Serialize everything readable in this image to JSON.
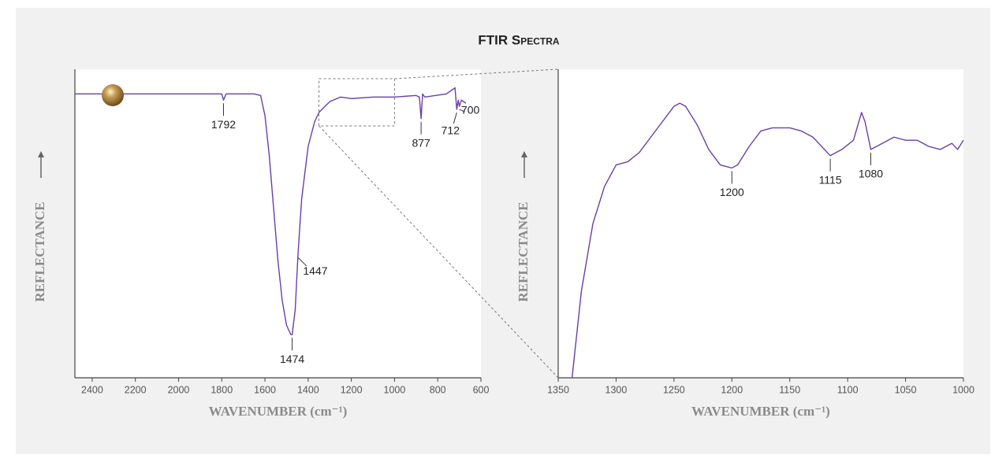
{
  "title": "FTIR Spectra",
  "chart_data": [
    {
      "type": "line",
      "xlabel": "WAVENUMBER (cm⁻¹)",
      "ylabel": "REFLECTANCE",
      "xlim": [
        2480,
        600
      ],
      "xticks": [
        2400,
        2200,
        2000,
        1800,
        1600,
        1400,
        1200,
        1000,
        800,
        600
      ],
      "ylim": [
        0,
        100
      ],
      "x": [
        2480,
        2000,
        1800,
        1792,
        1780,
        1650,
        1620,
        1600,
        1580,
        1560,
        1540,
        1520,
        1500,
        1480,
        1474,
        1460,
        1447,
        1430,
        1400,
        1370,
        1350,
        1300,
        1250,
        1200,
        1100,
        1000,
        900,
        885,
        877,
        870,
        860,
        760,
        720,
        712,
        705,
        700,
        690,
        670
      ],
      "series": [
        {
          "color": "#6a3fa8",
          "values": [
            92,
            92,
            92,
            90,
            92,
            92,
            91.5,
            85,
            72,
            55,
            38,
            25,
            17,
            14,
            14,
            22,
            40,
            58,
            75,
            83,
            86,
            89.5,
            91,
            90.5,
            91,
            91,
            91.5,
            91,
            84,
            92,
            91,
            92,
            94,
            87,
            90,
            88,
            90,
            89
          ]
        }
      ],
      "peaks": [
        1792,
        1474,
        1447,
        877,
        712,
        700
      ]
    },
    {
      "type": "line",
      "xlabel": "WAVENUMBER (cm⁻¹)",
      "ylabel": "REFLECTANCE",
      "xlim": [
        1350,
        1000
      ],
      "xticks": [
        1350,
        1300,
        1250,
        1200,
        1150,
        1100,
        1050,
        1000
      ],
      "ylim": [
        0,
        100
      ],
      "x": [
        1338,
        1330,
        1320,
        1310,
        1300,
        1290,
        1280,
        1270,
        1260,
        1250,
        1245,
        1240,
        1230,
        1220,
        1210,
        1200,
        1195,
        1185,
        1175,
        1165,
        1150,
        1140,
        1130,
        1120,
        1115,
        1105,
        1095,
        1088,
        1085,
        1080,
        1070,
        1060,
        1050,
        1040,
        1030,
        1020,
        1010,
        1005,
        1000
      ],
      "series": [
        {
          "color": "#6a3fa8",
          "values": [
            0,
            28,
            50,
            62,
            69,
            70,
            73,
            78,
            83,
            88,
            89,
            88,
            82,
            74,
            69,
            68,
            69,
            75,
            80,
            81,
            81,
            80,
            78,
            74,
            72,
            74,
            77,
            86,
            83,
            74,
            76,
            78,
            77,
            77,
            75,
            74,
            76,
            74,
            77
          ]
        }
      ],
      "peaks": [
        1200,
        1115,
        1080
      ]
    }
  ]
}
